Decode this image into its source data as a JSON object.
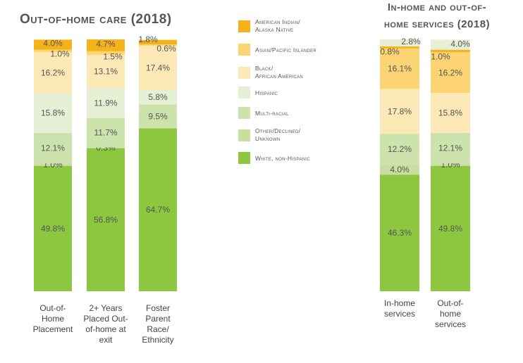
{
  "colors": {
    "American Indian/ Alaska Native": "#f5b21b",
    "Asian/Pacific Islander": "#fcd473",
    "Black/ African American": "#fde9b6",
    "Hispanic": "#e6f0d5",
    "Multi-racial": "#cde3ad",
    "Other/Declined/ Unknown": "#c8dfa0",
    "White, non-Hispanic": "#8dc63f"
  },
  "legend": {
    "items": [
      {
        "line1": "American Indian/",
        "line2": "Alaska Native",
        "key": "American Indian/ Alaska Native"
      },
      {
        "line1": "Asian/Pacific Islander",
        "line2": "",
        "key": "Asian/Pacific Islander"
      },
      {
        "line1": "Black/",
        "line2": "African American",
        "key": "Black/ African American"
      },
      {
        "line1": "Hispanic",
        "line2": "",
        "key": "Hispanic"
      },
      {
        "line1": "Multi-racial",
        "line2": "",
        "key": "Multi-racial"
      },
      {
        "line1": "Other/Declined/",
        "line2": "Unknown",
        "key": "Other/Declined/ Unknown"
      },
      {
        "line1": "White, non-Hispanic",
        "line2": "",
        "key": "White, non-Hispanic"
      }
    ]
  },
  "chart_data": [
    {
      "type": "bar",
      "stacked": true,
      "title": "Out-of-home care (2018)",
      "xlabel": "",
      "ylabel": "",
      "ylim": [
        0,
        100
      ],
      "grid": false,
      "legend": "right",
      "categories": [
        [
          "Out-of-",
          "Home",
          "Placement"
        ],
        [
          "2+ Years",
          "Placed Out-",
          "of-home at",
          "exit"
        ],
        [
          "Foster",
          "Parent",
          "Race/",
          "Ethnicity"
        ]
      ],
      "series": [
        {
          "name": "White, non-Hispanic",
          "values": [
            49.8,
            56.8,
            64.7
          ],
          "labels": [
            "49.8%",
            "56.8%",
            "64.7%"
          ]
        },
        {
          "name": "Other/Declined/ Unknown",
          "values": [
            1.0,
            0.3,
            0
          ],
          "labels": [
            "1.0%",
            "0.3%",
            ""
          ]
        },
        {
          "name": "Multi-racial",
          "values": [
            12.1,
            11.7,
            9.5
          ],
          "labels": [
            "12.1%",
            "11.7%",
            "9.5%"
          ]
        },
        {
          "name": "Hispanic",
          "values": [
            15.8,
            11.9,
            5.8
          ],
          "labels": [
            "15.8%",
            "11.9%",
            "5.8%"
          ]
        },
        {
          "name": "Black/ African American",
          "values": [
            16.2,
            13.1,
            17.4
          ],
          "labels": [
            "16.2%",
            "13.1%",
            "17.4%"
          ]
        },
        {
          "name": "Asian/Pacific Islander",
          "values": [
            1.0,
            1.5,
            0.6
          ],
          "labels": [
            "1.0%",
            "1.5%",
            "0.6%"
          ]
        },
        {
          "name": "American Indian/ Alaska Native",
          "values": [
            4.0,
            4.7,
            1.8
          ],
          "labels": [
            "4.0%",
            "4.7%",
            "1.8%"
          ]
        }
      ]
    },
    {
      "type": "bar",
      "stacked": true,
      "title": "In-home and out-of-home services (2018)",
      "xlabel": "",
      "ylabel": "",
      "ylim": [
        0,
        100
      ],
      "grid": false,
      "legend": "left",
      "categories": [
        [
          "In-home",
          "services"
        ],
        [
          "Out-of-",
          "home",
          "services"
        ]
      ],
      "series": [
        {
          "name": "White, non-Hispanic",
          "values": [
            46.3,
            49.8
          ],
          "labels": [
            "46.3%",
            "49.8%"
          ]
        },
        {
          "name": "Other/Declined/ Unknown",
          "values": [
            4.0,
            1.0
          ],
          "labels": [
            "4.0%",
            "1.0%"
          ]
        },
        {
          "name": "Multi-racial",
          "values": [
            12.2,
            12.1
          ],
          "labels": [
            "12.2%",
            "12.1%"
          ]
        },
        {
          "name": "Black/ African American",
          "values": [
            17.8,
            15.8
          ],
          "labels": [
            "17.8%",
            "15.8%"
          ]
        },
        {
          "name": "Asian/Pacific Islander",
          "values": [
            16.1,
            16.2
          ],
          "labels": [
            "16.1%",
            "16.2%"
          ]
        },
        {
          "name": "American Indian/ Alaska Native",
          "values": [
            0.8,
            1.0
          ],
          "labels": [
            "0.8%",
            "1.0%"
          ]
        },
        {
          "name": "Hispanic",
          "values": [
            2.8,
            4.0
          ],
          "labels": [
            "2.8%",
            "4.0%"
          ]
        }
      ]
    }
  ]
}
